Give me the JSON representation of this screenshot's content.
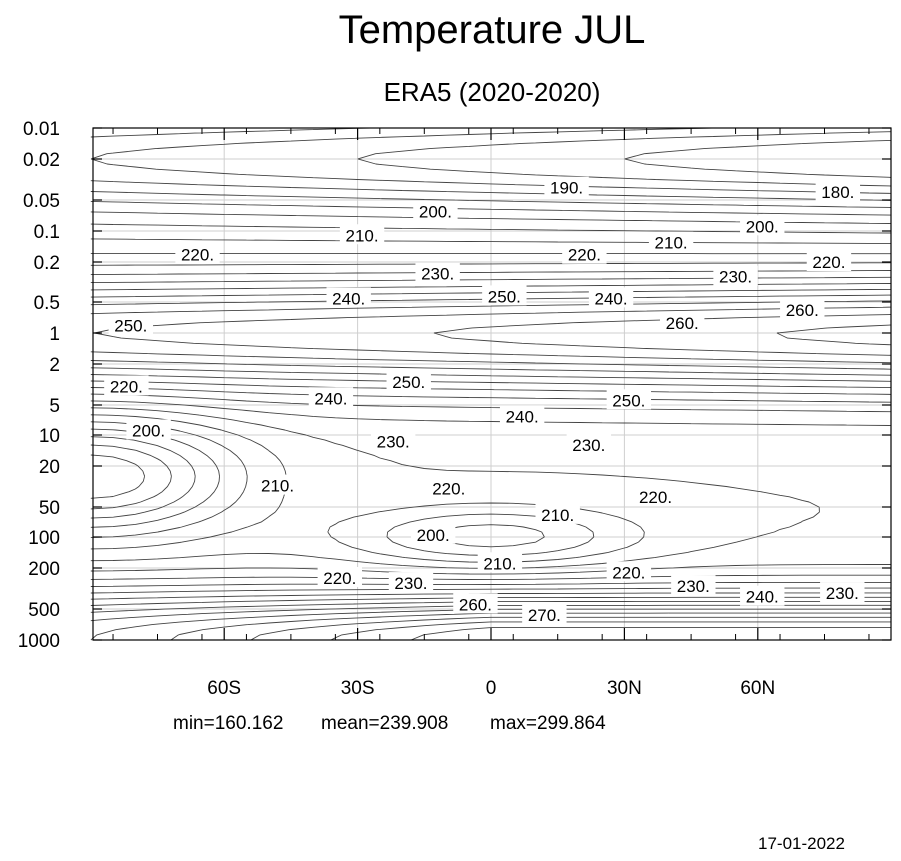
{
  "chart_data": {
    "type": "contour",
    "title": "Temperature JUL",
    "subtitle": "ERA5 (2020-2020)",
    "xlabel": "",
    "ylabel": "",
    "x_ticks": [
      {
        "value": -60,
        "label": "60S"
      },
      {
        "value": -30,
        "label": "30S"
      },
      {
        "value": 0,
        "label": "0"
      },
      {
        "value": 30,
        "label": "30N"
      },
      {
        "value": 60,
        "label": "60N"
      }
    ],
    "xlim": [
      -90,
      90
    ],
    "y_scale": "log",
    "y_ticks": [
      {
        "value": 0.01,
        "label": "0.01"
      },
      {
        "value": 0.02,
        "label": "0.02"
      },
      {
        "value": 0.05,
        "label": "0.05"
      },
      {
        "value": 0.1,
        "label": "0.1"
      },
      {
        "value": 0.2,
        "label": "0.2"
      },
      {
        "value": 0.5,
        "label": "0.5"
      },
      {
        "value": 1,
        "label": "1"
      },
      {
        "value": 2,
        "label": "2"
      },
      {
        "value": 5,
        "label": "5"
      },
      {
        "value": 10,
        "label": "10"
      },
      {
        "value": 20,
        "label": "20"
      },
      {
        "value": 50,
        "label": "50"
      },
      {
        "value": 100,
        "label": "100"
      },
      {
        "value": 200,
        "label": "200"
      },
      {
        "value": 500,
        "label": "500"
      },
      {
        "value": 1000,
        "label": "1000"
      }
    ],
    "ylim": [
      1000,
      0.01
    ],
    "grid": true,
    "contour_interval": 5,
    "contour_labels": [
      {
        "text": "190.",
        "lat": 17,
        "p": 0.038
      },
      {
        "text": "180.",
        "lat": 78,
        "p": 0.042
      },
      {
        "text": "200.",
        "lat": -12.5,
        "p": 0.065
      },
      {
        "text": "210.",
        "lat": -29,
        "p": 0.11
      },
      {
        "text": "220.",
        "lat": -66,
        "p": 0.17
      },
      {
        "text": "220.",
        "lat": 21,
        "p": 0.17
      },
      {
        "text": "210.",
        "lat": 40.5,
        "p": 0.13
      },
      {
        "text": "200.",
        "lat": 61,
        "p": 0.09
      },
      {
        "text": "220.",
        "lat": 76,
        "p": 0.2
      },
      {
        "text": "230.",
        "lat": -12,
        "p": 0.26
      },
      {
        "text": "230.",
        "lat": 55,
        "p": 0.28
      },
      {
        "text": "240.",
        "lat": -32,
        "p": 0.46
      },
      {
        "text": "250.",
        "lat": 3,
        "p": 0.44
      },
      {
        "text": "240.",
        "lat": 27,
        "p": 0.46
      },
      {
        "text": "260.",
        "lat": 43,
        "p": 0.8
      },
      {
        "text": "260.",
        "lat": 70,
        "p": 0.6
      },
      {
        "text": "250.",
        "lat": -81,
        "p": 0.85
      },
      {
        "text": "220.",
        "lat": -82,
        "p": 3.3
      },
      {
        "text": "240.",
        "lat": -36,
        "p": 4.3
      },
      {
        "text": "250.",
        "lat": -18.5,
        "p": 3
      },
      {
        "text": "240.",
        "lat": 7,
        "p": 6.5
      },
      {
        "text": "250.",
        "lat": 31,
        "p": 4.5
      },
      {
        "text": "200.",
        "lat": -77,
        "p": 9
      },
      {
        "text": "230.",
        "lat": -22,
        "p": 11.5
      },
      {
        "text": "230.",
        "lat": 22,
        "p": 12.5
      },
      {
        "text": "210.",
        "lat": -48,
        "p": 31
      },
      {
        "text": "220.",
        "lat": -9.5,
        "p": 33
      },
      {
        "text": "220.",
        "lat": 37,
        "p": 40
      },
      {
        "text": "210.",
        "lat": 15,
        "p": 60
      },
      {
        "text": "200.",
        "lat": -13,
        "p": 95
      },
      {
        "text": "210.",
        "lat": 2,
        "p": 180
      },
      {
        "text": "220.",
        "lat": 31,
        "p": 220
      },
      {
        "text": "220.",
        "lat": -34,
        "p": 250
      },
      {
        "text": "230.",
        "lat": -18,
        "p": 280
      },
      {
        "text": "230.",
        "lat": 45.5,
        "p": 300
      },
      {
        "text": "240.",
        "lat": 61,
        "p": 380
      },
      {
        "text": "230.",
        "lat": 79,
        "p": 350
      },
      {
        "text": "260.",
        "lat": -3.5,
        "p": 450
      },
      {
        "text": "270.",
        "lat": 12,
        "p": 570
      }
    ],
    "stats": {
      "min": "160.162",
      "mean": "239.908",
      "max": "299.864"
    }
  },
  "stats_text": {
    "min": "min=160.162",
    "mean": "mean=239.908",
    "max": "max=299.864"
  },
  "date": "17-01-2022"
}
